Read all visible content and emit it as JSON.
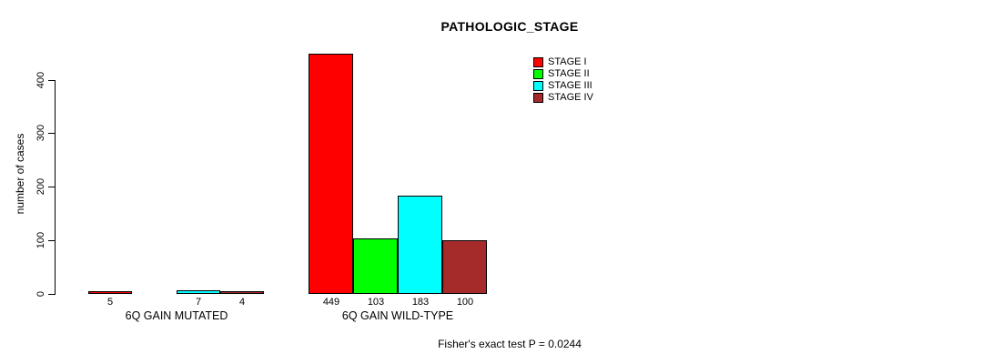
{
  "chart_data": {
    "type": "bar",
    "title": "PATHOLOGIC_STAGE",
    "ylabel": "number of cases",
    "ylim": [
      0,
      400
    ],
    "yticks": [
      0,
      100,
      200,
      300,
      400
    ],
    "grid": false,
    "legend_position": "top-right",
    "categories": [
      "6Q GAIN MUTATED",
      "6Q GAIN WILD-TYPE"
    ],
    "series": [
      {
        "name": "STAGE I",
        "color": "#ff0000",
        "values": [
          5,
          449
        ]
      },
      {
        "name": "STAGE II",
        "color": "#00ff00",
        "values": [
          0,
          103
        ]
      },
      {
        "name": "STAGE III",
        "color": "#00ffff",
        "values": [
          7,
          183
        ]
      },
      {
        "name": "STAGE IV",
        "color": "#a52a2a",
        "values": [
          4,
          100
        ]
      }
    ],
    "bar_value_labels": [
      [
        "5",
        "",
        "7",
        "4"
      ],
      [
        "449",
        "103",
        "183",
        "100"
      ]
    ],
    "annotation": "Fisher's exact test P = 0.0244"
  }
}
